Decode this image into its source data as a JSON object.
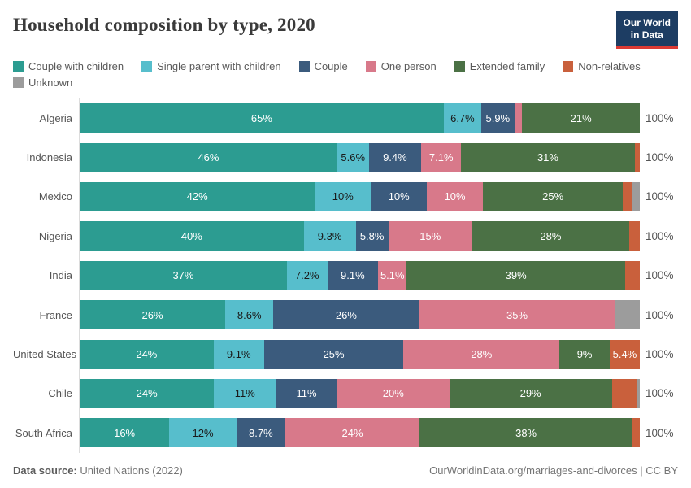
{
  "header": {
    "title": "Household composition by type, 2020",
    "logo_line1": "Our World",
    "logo_line2": "in Data",
    "logo_bg": "#1d3d63",
    "logo_accent": "#dc3a34"
  },
  "chart_data": {
    "type": "bar",
    "orientation": "horizontal",
    "stacked": true,
    "unit": "%",
    "title": "Household composition by type, 2020",
    "xlim": [
      0,
      100
    ],
    "legend_position": "top",
    "row_total_label": "100%",
    "categories": [
      "Algeria",
      "Indonesia",
      "Mexico",
      "Nigeria",
      "India",
      "France",
      "United States",
      "Chile",
      "South Africa"
    ],
    "series": [
      {
        "name": "Couple with children",
        "color": "#2c9c91",
        "label_color": "#ffffff",
        "values": [
          65,
          46,
          42,
          40,
          37,
          26,
          24,
          24,
          16
        ],
        "display": [
          "65%",
          "46%",
          "42%",
          "40%",
          "37%",
          "26%",
          "24%",
          "24%",
          "16%"
        ]
      },
      {
        "name": "Single parent with children",
        "color": "#57becc",
        "label_color": "#1a1a1a",
        "values": [
          6.7,
          5.6,
          10,
          9.3,
          7.2,
          8.6,
          9.1,
          11,
          12
        ],
        "display": [
          "6.7%",
          "5.6%",
          "10%",
          "9.3%",
          "7.2%",
          "8.6%",
          "9.1%",
          "11%",
          "12%"
        ]
      },
      {
        "name": "Couple",
        "color": "#3b5b7d",
        "label_color": "#ffffff",
        "values": [
          5.9,
          9.4,
          10,
          5.8,
          9.1,
          26,
          25,
          11,
          8.7
        ],
        "display": [
          "5.9%",
          "9.4%",
          "10%",
          "5.8%",
          "9.1%",
          "26%",
          "25%",
          "11%",
          "8.7%"
        ]
      },
      {
        "name": "One person",
        "color": "#d8798a",
        "label_color": "#ffffff",
        "values": [
          1.4,
          7.1,
          10,
          15,
          5.1,
          35,
          28,
          20,
          24
        ],
        "display": [
          "",
          "7.1%",
          "10%",
          "15%",
          "5.1%",
          "35%",
          "28%",
          "20%",
          "24%"
        ]
      },
      {
        "name": "Extended family",
        "color": "#4b7145",
        "label_color": "#ffffff",
        "values": [
          21,
          31,
          25,
          28,
          39,
          0,
          9,
          29,
          38
        ],
        "display": [
          "21%",
          "31%",
          "25%",
          "28%",
          "39%",
          "",
          "9%",
          "29%",
          "38%"
        ]
      },
      {
        "name": "Non-relatives",
        "color": "#c9603c",
        "label_color": "#ffffff",
        "values": [
          0,
          0.9,
          1.5,
          1.9,
          2.6,
          0,
          5.4,
          4.5,
          1.3
        ],
        "display": [
          "",
          "",
          "",
          "",
          "",
          "",
          "5.4%",
          "",
          ""
        ]
      },
      {
        "name": "Unknown",
        "color": "#9c9c9c",
        "label_color": "#ffffff",
        "values": [
          0,
          0,
          1.5,
          0,
          0,
          4.4,
          0,
          0.5,
          0
        ],
        "display": [
          "",
          "",
          "",
          "",
          "",
          "",
          "",
          "",
          ""
        ]
      }
    ]
  },
  "footer": {
    "source_prefix": "Data source:",
    "source_text": "United Nations (2022)",
    "link_text": "OurWorldinData.org/marriages-and-divorces | CC BY"
  }
}
